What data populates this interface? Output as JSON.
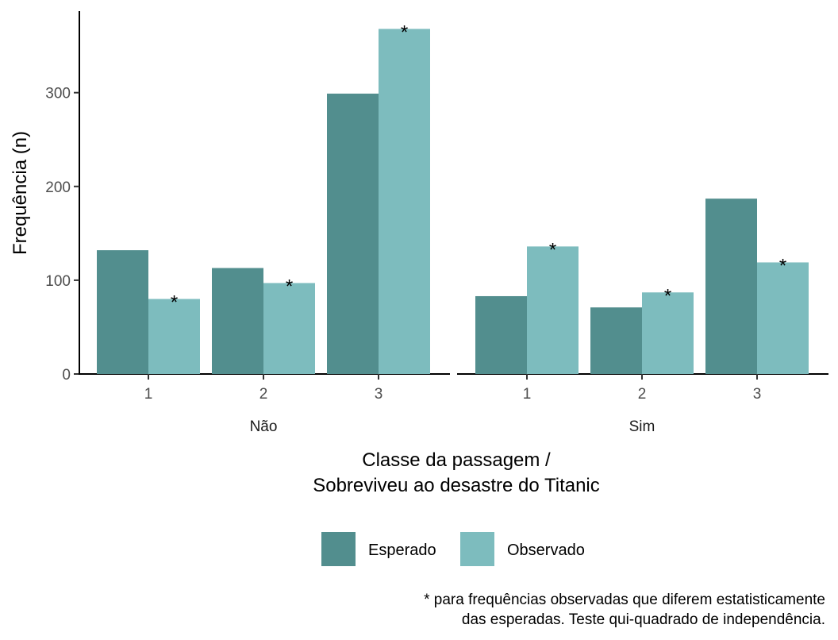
{
  "chart_data": {
    "type": "bar",
    "ylabel": "Frequência (n)",
    "xlabel": [
      "Classe da passagem /",
      "Sobreviveu ao desastre do Titanic"
    ],
    "ylim": [
      0,
      385
    ],
    "yticks": [
      0,
      100,
      200,
      300
    ],
    "grid": false,
    "legend_position": "bottom",
    "series_names": [
      "Esperado",
      "Observado"
    ],
    "colors": {
      "Esperado": "#528e8e",
      "Observado": "#7dbcbe"
    },
    "facets": [
      {
        "label": "Não",
        "categories": [
          "1",
          "2",
          "3"
        ],
        "series": [
          {
            "name": "Esperado",
            "values": [
              132,
              113,
              299
            ]
          },
          {
            "name": "Observado",
            "values": [
              80,
              97,
              368
            ]
          }
        ],
        "significant": [
          true,
          true,
          true
        ]
      },
      {
        "label": "Sim",
        "categories": [
          "1",
          "2",
          "3"
        ],
        "series": [
          {
            "name": "Esperado",
            "values": [
              83,
              71,
              187
            ]
          },
          {
            "name": "Observado",
            "values": [
              136,
              87,
              119
            ]
          }
        ],
        "significant": [
          true,
          true,
          true
        ]
      }
    ],
    "significance_marker": "*",
    "caption": [
      "* para frequências observadas que diferem estatisticamente",
      "das esperadas. Teste qui-quadrado de independência."
    ]
  }
}
